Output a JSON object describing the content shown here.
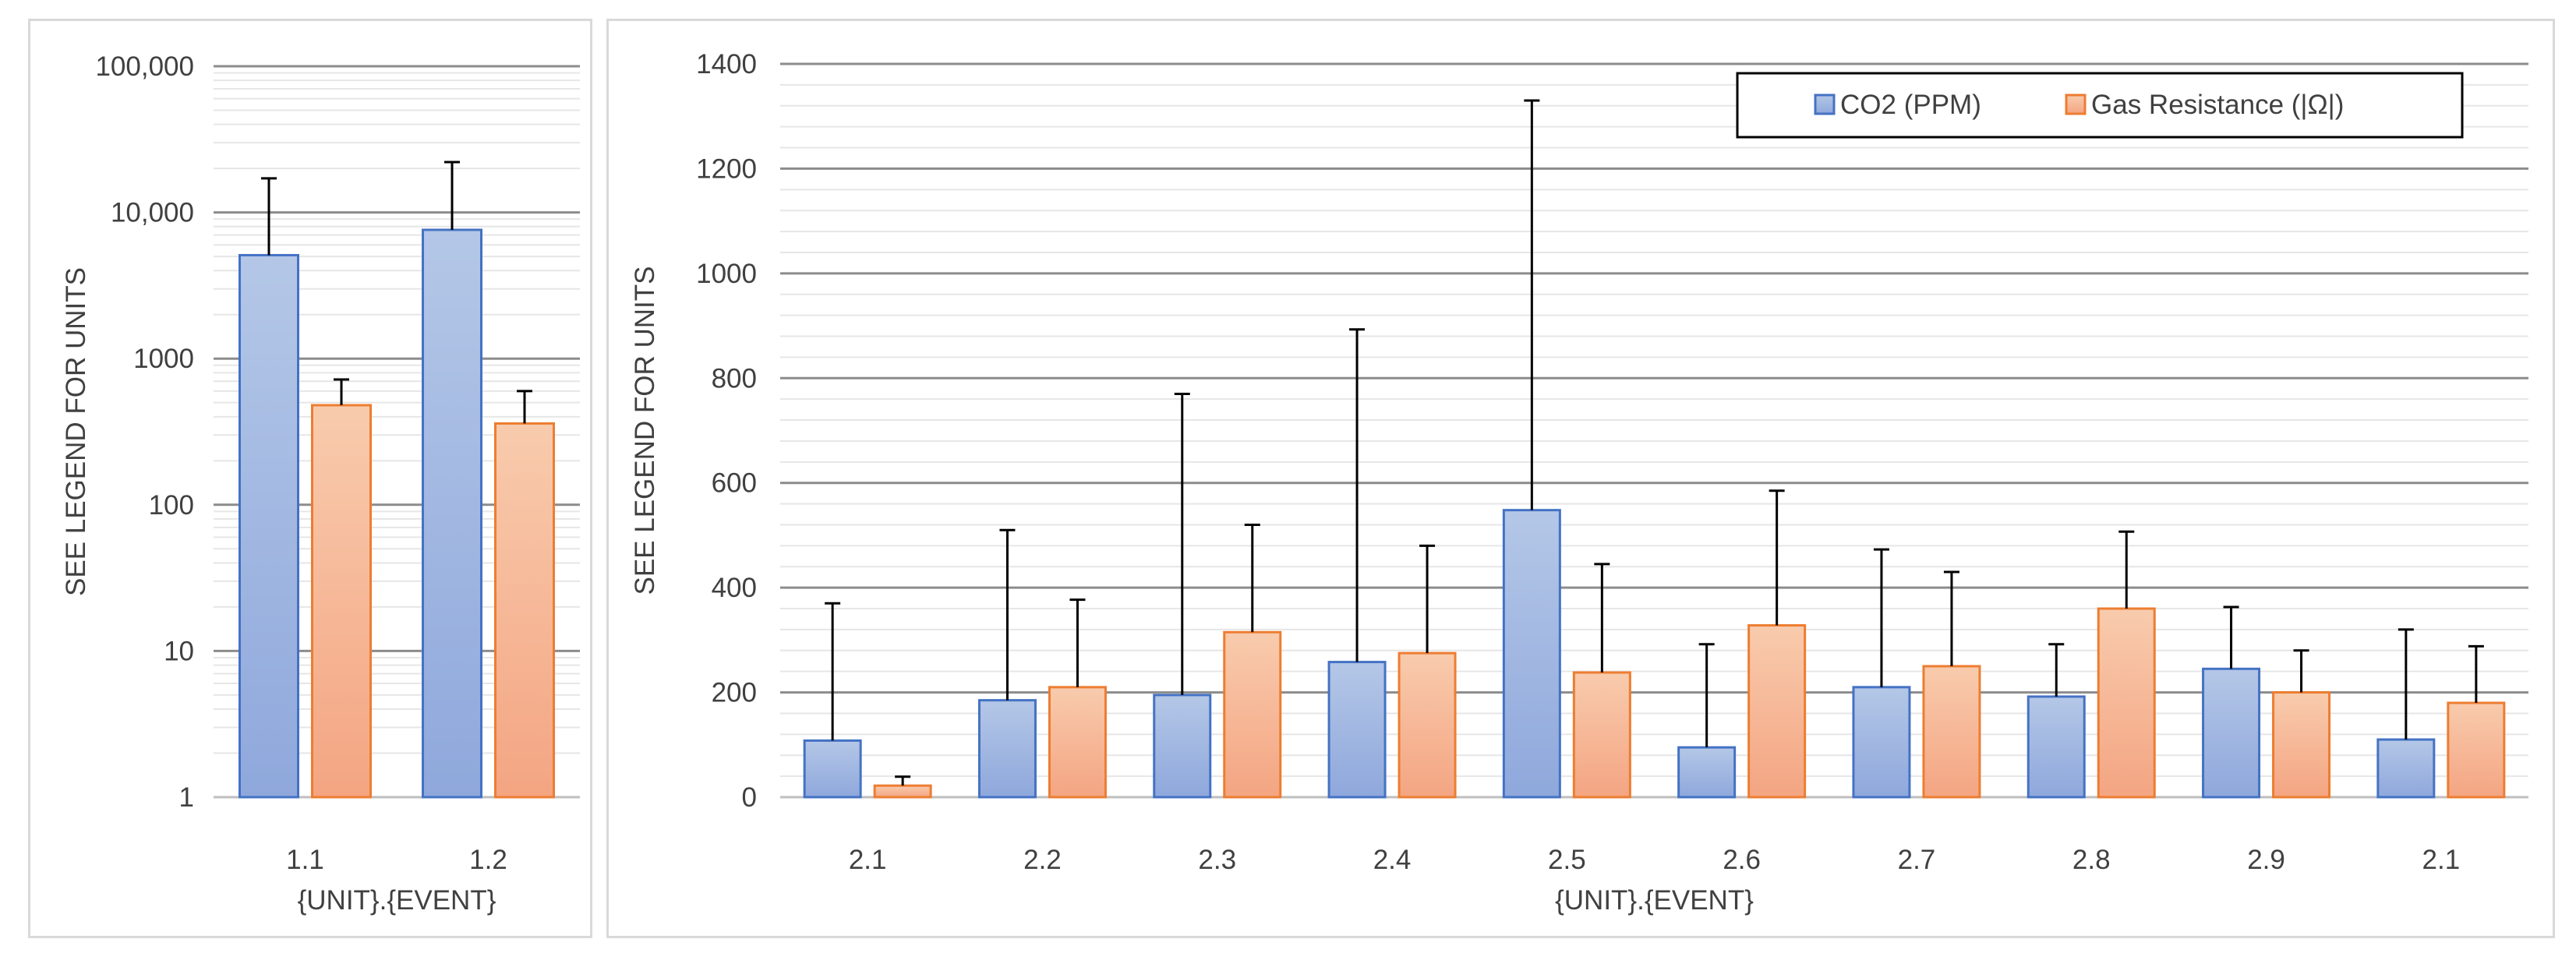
{
  "charts": [
    {
      "type": "bar",
      "categories": [
        "1.1",
        "1.2"
      ],
      "series": [
        {
          "name": "CO2 (PPM)",
          "values": [
            5100,
            7600
          ],
          "error_plus": [
            12000,
            14500
          ]
        },
        {
          "name": "Gas Resistance (|Ω|)",
          "values": [
            480,
            360
          ],
          "error_plus": [
            240,
            240
          ]
        }
      ],
      "xlabel": "{UNIT}.{EVENT}",
      "ylabel": "SEE LEGEND FOR UNITS",
      "yscale": "log",
      "ylim": [
        1,
        100000
      ],
      "yticks": [
        "1",
        "10",
        "100",
        "1000",
        "10,000",
        "100,000"
      ],
      "grid": true,
      "colors": {
        "CO2 (PPM)": "#8fa8dc",
        "Gas Resistance (|Ω|)": "#f4a582"
      }
    },
    {
      "type": "bar",
      "categories": [
        "2.1",
        "2.2",
        "2.3",
        "2.4",
        "2.5",
        "2.6",
        "2.7",
        "2.8",
        "2.9",
        "2.1"
      ],
      "series": [
        {
          "name": "CO2 (PPM)",
          "values": [
            108,
            185,
            195,
            258,
            548,
            95,
            210,
            192,
            245,
            110
          ],
          "error_plus": [
            262,
            325,
            575,
            635,
            782,
            197,
            263,
            100,
            118,
            210
          ]
        },
        {
          "name": "Gas Resistance (|Ω|)",
          "values": [
            22,
            210,
            315,
            275,
            238,
            328,
            250,
            360,
            200,
            180
          ],
          "error_plus": [
            17,
            167,
            205,
            205,
            207,
            257,
            180,
            147,
            80,
            108
          ]
        }
      ],
      "xlabel": "{UNIT}.{EVENT}",
      "ylabel": "SEE LEGEND FOR UNITS",
      "ylim": [
        0,
        1400
      ],
      "yticks": [
        "0",
        "200",
        "400",
        "600",
        "800",
        "1000",
        "1200",
        "1400"
      ],
      "grid": true,
      "legend_position": "top-right",
      "colors": {
        "CO2 (PPM)": "#8fa8dc",
        "Gas Resistance (|Ω|)": "#f4a582"
      }
    }
  ]
}
